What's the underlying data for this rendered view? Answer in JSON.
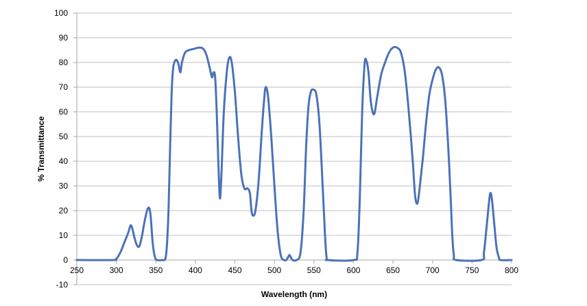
{
  "chart_data": {
    "type": "line",
    "title": "",
    "xlabel": "Wavelength (nm)",
    "ylabel": "% Transmittance",
    "xlim": [
      250,
      800
    ],
    "ylim": [
      -10,
      100
    ],
    "x_ticks": [
      250,
      300,
      350,
      400,
      450,
      500,
      550,
      600,
      650,
      700,
      750,
      800
    ],
    "y_ticks": [
      -10,
      0,
      10,
      20,
      30,
      40,
      50,
      60,
      70,
      80,
      90,
      100
    ],
    "grid": "horizontal",
    "legend": "none",
    "series": [
      {
        "color": "#4a72b8",
        "points": [
          [
            250,
            0
          ],
          [
            295,
            0
          ],
          [
            300,
            0.5
          ],
          [
            305,
            3
          ],
          [
            310,
            7
          ],
          [
            315,
            11
          ],
          [
            318,
            14
          ],
          [
            320,
            13
          ],
          [
            323,
            9
          ],
          [
            326,
            6
          ],
          [
            329,
            5.5
          ],
          [
            332,
            9
          ],
          [
            336,
            16
          ],
          [
            340,
            21
          ],
          [
            343,
            19
          ],
          [
            346,
            7
          ],
          [
            349,
            1
          ],
          [
            352,
            0
          ],
          [
            358,
            0
          ],
          [
            362,
            0.5
          ],
          [
            364,
            6
          ],
          [
            366,
            20
          ],
          [
            368,
            45
          ],
          [
            370,
            68
          ],
          [
            372,
            78
          ],
          [
            375,
            81
          ],
          [
            378,
            80
          ],
          [
            381,
            76
          ],
          [
            383,
            80
          ],
          [
            387,
            84
          ],
          [
            392,
            85
          ],
          [
            398,
            85.5
          ],
          [
            405,
            86
          ],
          [
            410,
            85.5
          ],
          [
            414,
            83
          ],
          [
            418,
            78
          ],
          [
            421,
            74
          ],
          [
            423,
            76
          ],
          [
            425,
            74
          ],
          [
            427,
            60
          ],
          [
            429,
            40
          ],
          [
            431,
            25
          ],
          [
            433,
            35
          ],
          [
            436,
            60
          ],
          [
            440,
            77
          ],
          [
            443,
            82
          ],
          [
            446,
            80
          ],
          [
            450,
            68
          ],
          [
            454,
            50
          ],
          [
            458,
            35
          ],
          [
            462,
            29
          ],
          [
            466,
            29
          ],
          [
            469,
            27
          ],
          [
            471,
            20
          ],
          [
            473,
            18
          ],
          [
            476,
            20
          ],
          [
            480,
            32
          ],
          [
            484,
            52
          ],
          [
            487,
            65
          ],
          [
            489,
            70
          ],
          [
            492,
            66
          ],
          [
            496,
            50
          ],
          [
            500,
            30
          ],
          [
            504,
            12
          ],
          [
            508,
            2
          ],
          [
            512,
            0
          ],
          [
            515,
            0
          ],
          [
            517,
            1
          ],
          [
            519,
            2
          ],
          [
            521,
            1
          ],
          [
            523,
            0
          ],
          [
            528,
            0
          ],
          [
            533,
            3
          ],
          [
            537,
            20
          ],
          [
            540,
            45
          ],
          [
            543,
            62
          ],
          [
            546,
            68
          ],
          [
            549,
            69
          ],
          [
            553,
            67
          ],
          [
            557,
            55
          ],
          [
            561,
            30
          ],
          [
            564,
            10
          ],
          [
            566,
            1
          ],
          [
            568,
            0
          ],
          [
            600,
            0
          ],
          [
            605,
            3
          ],
          [
            608,
            25
          ],
          [
            611,
            60
          ],
          [
            614,
            79
          ],
          [
            616,
            81
          ],
          [
            619,
            76
          ],
          [
            622,
            64
          ],
          [
            626,
            59
          ],
          [
            630,
            66
          ],
          [
            635,
            75
          ],
          [
            640,
            80
          ],
          [
            645,
            84
          ],
          [
            650,
            86
          ],
          [
            655,
            86
          ],
          [
            660,
            84
          ],
          [
            665,
            76
          ],
          [
            670,
            60
          ],
          [
            675,
            40
          ],
          [
            678,
            26
          ],
          [
            681,
            23
          ],
          [
            684,
            30
          ],
          [
            688,
            42
          ],
          [
            692,
            56
          ],
          [
            696,
            67
          ],
          [
            700,
            73
          ],
          [
            704,
            77
          ],
          [
            708,
            78
          ],
          [
            712,
            75
          ],
          [
            716,
            65
          ],
          [
            720,
            45
          ],
          [
            723,
            25
          ],
          [
            725,
            10
          ],
          [
            727,
            2
          ],
          [
            730,
            0
          ],
          [
            762,
            0
          ],
          [
            765,
            3
          ],
          [
            768,
            12
          ],
          [
            771,
            22
          ],
          [
            773,
            27
          ],
          [
            775,
            25
          ],
          [
            778,
            15
          ],
          [
            781,
            5
          ],
          [
            784,
            1
          ],
          [
            786,
            0
          ],
          [
            800,
            0
          ]
        ]
      }
    ]
  }
}
